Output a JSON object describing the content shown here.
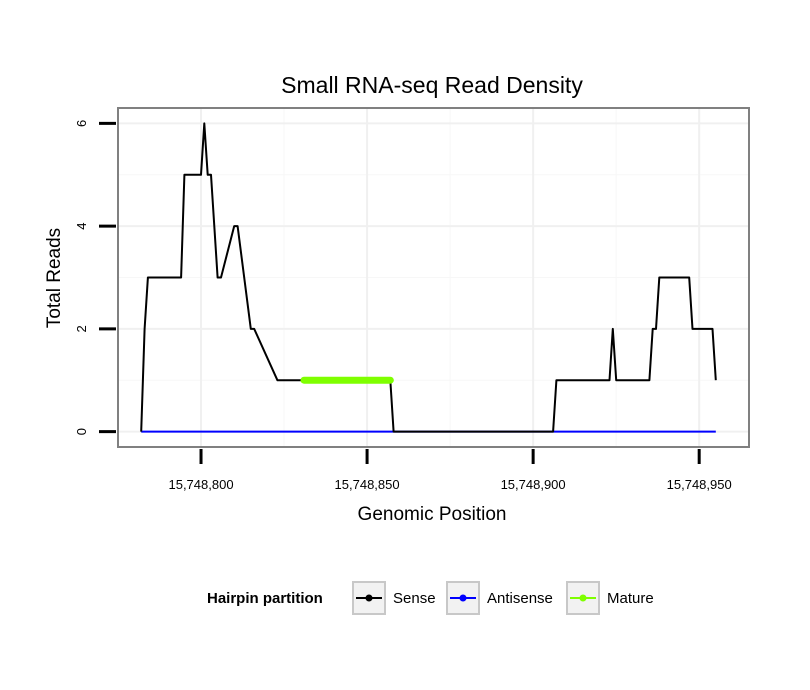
{
  "chart_data": {
    "type": "line",
    "title": "Small RNA-seq Read Density",
    "xlabel": "Genomic Position",
    "ylabel": "Total Reads",
    "xlim": [
      15748775,
      15748965
    ],
    "ylim": [
      -0.3,
      6.3
    ],
    "x_ticks": [
      15748800,
      15748850,
      15748900,
      15748950
    ],
    "x_tick_labels": [
      "15,748,800",
      "15,748,850",
      "15,748,900",
      "15,748,950"
    ],
    "y_ticks": [
      0,
      2,
      4,
      6
    ],
    "y_tick_labels": [
      "0",
      "2",
      "4",
      "6"
    ],
    "grid": true,
    "legend": {
      "title": "Hairpin partition",
      "position": "bottom",
      "entries": [
        {
          "name": "Sense",
          "color": "#000000"
        },
        {
          "name": "Antisense",
          "color": "#0000ff"
        },
        {
          "name": "Mature",
          "color": "#7fff00"
        }
      ]
    },
    "series": [
      {
        "name": "Sense",
        "color": "#000000",
        "x": [
          15748782,
          15748783,
          15748784,
          15748794,
          15748795,
          15748800,
          15748801,
          15748802,
          15748803,
          15748805,
          15748806,
          15748810,
          15748811,
          15748815,
          15748816,
          15748823,
          15748824,
          15748857,
          15748858,
          15748906,
          15748907,
          15748923,
          15748924,
          15748925,
          15748935,
          15748936,
          15748937,
          15748938,
          15748947,
          15748948,
          15748954,
          15748955
        ],
        "y": [
          0,
          2,
          3,
          3,
          5,
          5,
          6,
          5,
          5,
          3,
          3,
          4,
          4,
          2,
          2,
          1,
          1,
          1,
          0,
          0,
          1,
          1,
          2,
          1,
          1,
          2,
          2,
          3,
          3,
          2,
          2,
          1
        ]
      },
      {
        "name": "Antisense",
        "color": "#0000ff",
        "x": [
          15748782,
          15748955
        ],
        "y": [
          0,
          0
        ]
      },
      {
        "name": "Mature",
        "color": "#7fff00",
        "x": [
          15748831,
          15748857
        ],
        "y": [
          1,
          1
        ]
      }
    ]
  }
}
